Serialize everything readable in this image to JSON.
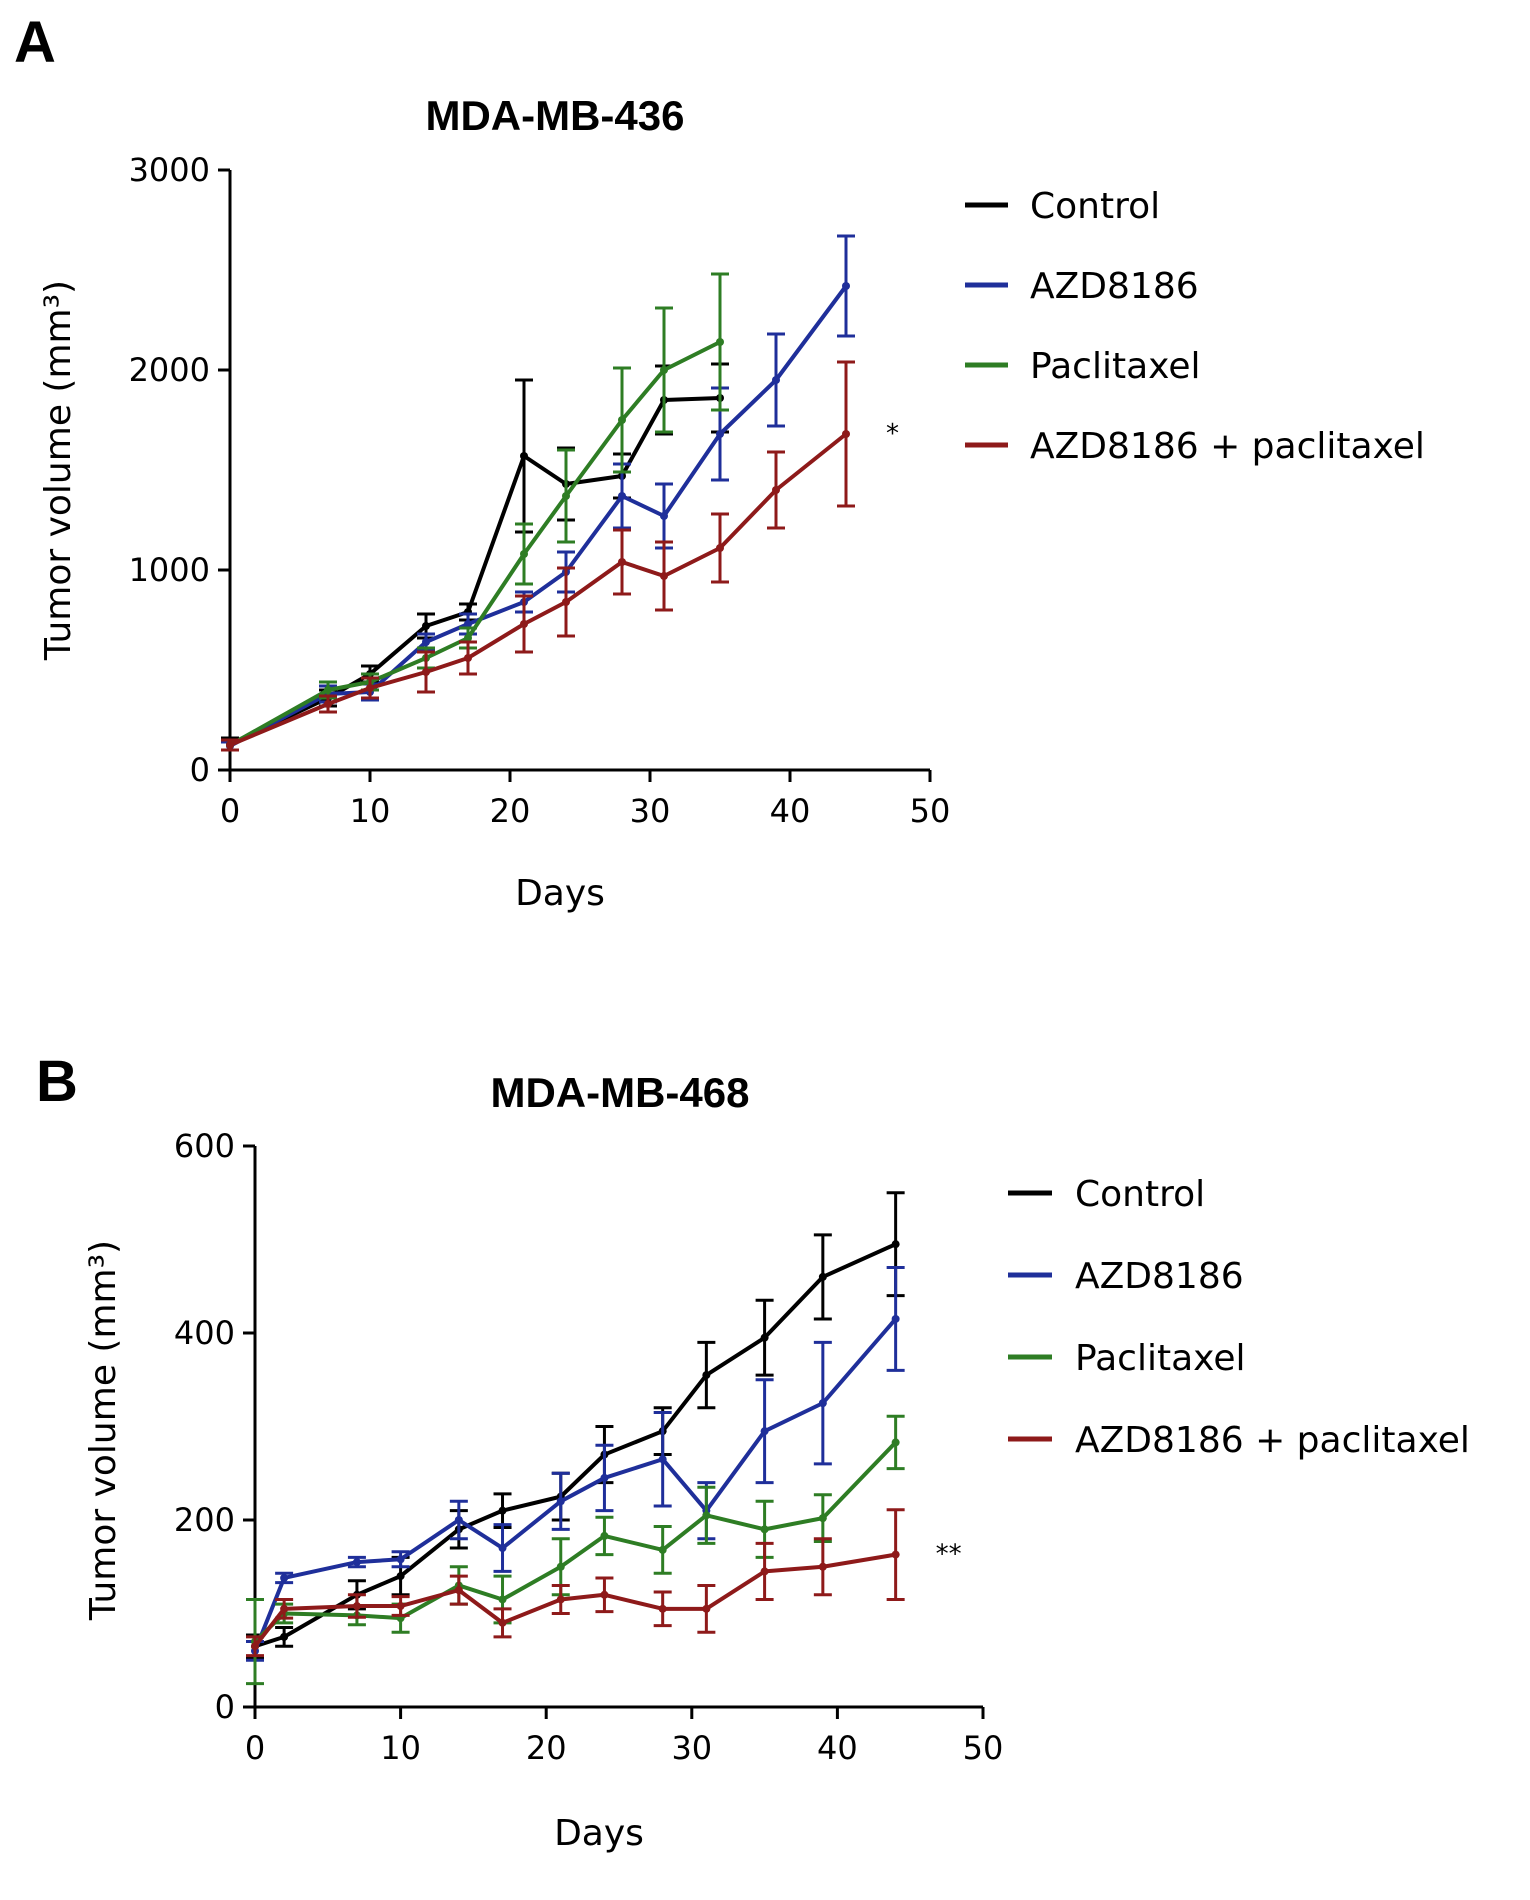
{
  "figure": {
    "panel_labels": [
      "A",
      "B"
    ]
  },
  "chart_data": [
    {
      "panel": "A",
      "type": "line",
      "title": "MDA-MB-436",
      "xlabel": "Days",
      "ylabel": "Tumor volume (mm³)",
      "xlim": [
        0,
        50
      ],
      "ylim": [
        0,
        3000
      ],
      "xticks": [
        0,
        10,
        20,
        30,
        40,
        50
      ],
      "yticks": [
        0,
        1000,
        2000,
        3000
      ],
      "grid": false,
      "legend_position": "right",
      "annotation": "*",
      "series": [
        {
          "name": "Control",
          "color": "#000000",
          "x": [
            0,
            7,
            10,
            14,
            17,
            21,
            24,
            28,
            31,
            35
          ],
          "y": [
            130,
            360,
            480,
            720,
            790,
            1570,
            1430,
            1470,
            1850,
            1860
          ],
          "err": [
            30,
            40,
            40,
            60,
            40,
            380,
            180,
            110,
            170,
            170
          ]
        },
        {
          "name": "AZD8186",
          "color": "#1f2f9a",
          "x": [
            0,
            7,
            10,
            14,
            17,
            21,
            24,
            28,
            31,
            35,
            39,
            44
          ],
          "y": [
            120,
            380,
            390,
            640,
            730,
            840,
            990,
            1370,
            1270,
            1680,
            1950,
            2420
          ],
          "err": [
            20,
            40,
            40,
            40,
            50,
            50,
            100,
            160,
            160,
            230,
            230,
            250
          ]
        },
        {
          "name": "Paclitaxel",
          "color": "#2e7d24",
          "x": [
            0,
            7,
            10,
            14,
            17,
            21,
            24,
            28,
            31,
            35
          ],
          "y": [
            125,
            400,
            440,
            560,
            660,
            1080,
            1370,
            1750,
            2000,
            2140
          ],
          "err": [
            25,
            40,
            40,
            50,
            50,
            150,
            230,
            260,
            310,
            340
          ]
        },
        {
          "name": "AZD8186 + paclitaxel",
          "color": "#8e1a1a",
          "x": [
            0,
            7,
            10,
            14,
            17,
            21,
            24,
            28,
            31,
            35,
            39,
            44
          ],
          "y": [
            125,
            330,
            410,
            490,
            560,
            730,
            840,
            1040,
            970,
            1110,
            1400,
            1680
          ],
          "err": [
            25,
            40,
            50,
            100,
            80,
            140,
            170,
            160,
            170,
            170,
            190,
            360
          ]
        }
      ]
    },
    {
      "panel": "B",
      "type": "line",
      "title": "MDA-MB-468",
      "xlabel": "Days",
      "ylabel": "Tumor volume (mm³)",
      "xlim": [
        0,
        50
      ],
      "ylim": [
        0,
        600
      ],
      "xticks": [
        0,
        10,
        20,
        30,
        40,
        50
      ],
      "yticks": [
        0,
        200,
        400,
        600
      ],
      "grid": false,
      "legend_position": "right",
      "annotation": "**",
      "series": [
        {
          "name": "Control",
          "color": "#000000",
          "x": [
            0,
            2,
            7,
            10,
            14,
            17,
            21,
            24,
            28,
            31,
            35,
            39,
            44
          ],
          "y": [
            65,
            75,
            120,
            140,
            190,
            210,
            225,
            270,
            295,
            355,
            395,
            460,
            495
          ],
          "err": [
            12,
            10,
            15,
            20,
            20,
            18,
            25,
            30,
            25,
            35,
            40,
            45,
            55
          ]
        },
        {
          "name": "AZD8186",
          "color": "#1f2f9a",
          "x": [
            0,
            2,
            7,
            10,
            14,
            17,
            21,
            24,
            28,
            31,
            35,
            39,
            44
          ],
          "y": [
            60,
            138,
            155,
            158,
            200,
            170,
            220,
            245,
            265,
            210,
            295,
            325,
            415
          ],
          "err": [
            10,
            5,
            5,
            8,
            20,
            25,
            30,
            35,
            50,
            30,
            55,
            65,
            55
          ]
        },
        {
          "name": "Paclitaxel",
          "color": "#2e7d24",
          "x": [
            0,
            2,
            7,
            10,
            14,
            17,
            21,
            24,
            28,
            31,
            35,
            39,
            44
          ],
          "y": [
            70,
            100,
            98,
            95,
            130,
            115,
            150,
            183,
            168,
            205,
            190,
            202,
            283
          ],
          "err": [
            45,
            10,
            10,
            15,
            20,
            25,
            30,
            20,
            25,
            30,
            30,
            25,
            28
          ]
        },
        {
          "name": "AZD8186 + paclitaxel",
          "color": "#8e1a1a",
          "x": [
            0,
            2,
            7,
            10,
            14,
            17,
            21,
            24,
            28,
            31,
            35,
            39,
            44
          ],
          "y": [
            65,
            105,
            108,
            108,
            125,
            90,
            115,
            120,
            105,
            105,
            145,
            150,
            163
          ],
          "err": [
            10,
            10,
            12,
            10,
            15,
            15,
            15,
            18,
            18,
            25,
            30,
            30,
            48
          ]
        }
      ]
    }
  ]
}
